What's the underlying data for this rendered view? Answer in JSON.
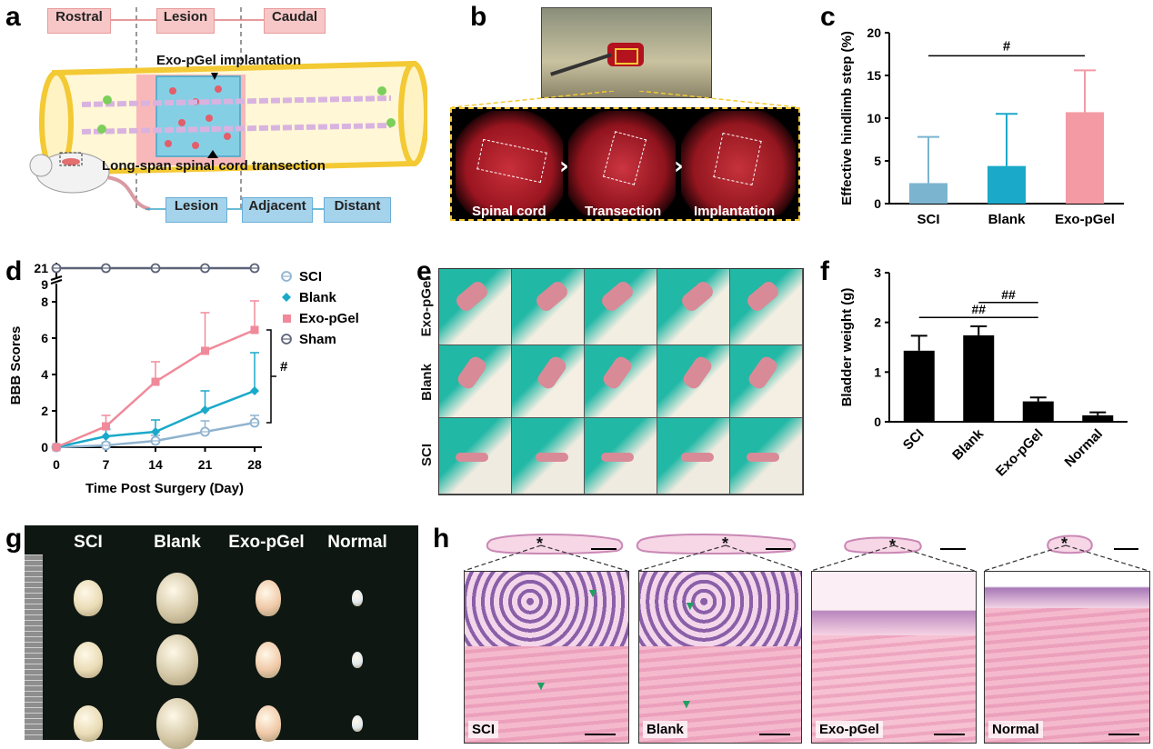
{
  "panels": {
    "a": {
      "label": "a",
      "top_boxes": [
        "Rostral",
        "Lesion",
        "Caudal"
      ],
      "implant_text": "Exo-pGel implantation",
      "transection_text": "Long-span spinal cord transection",
      "bottom_boxes": [
        "Lesion",
        "Adjacent",
        "Distant"
      ]
    },
    "b": {
      "label": "b",
      "captions": [
        "Spinal cord",
        "Transection",
        "Implantation"
      ]
    },
    "c": {
      "label": "c"
    },
    "d": {
      "label": "d"
    },
    "e": {
      "label": "e",
      "row_labels": [
        "Exo-pGel",
        "Blank",
        "SCI"
      ]
    },
    "f": {
      "label": "f"
    },
    "g": {
      "label": "g",
      "group_labels": [
        "SCI",
        "Blank",
        "Exo-pGel",
        "Normal"
      ]
    },
    "h": {
      "label": "h",
      "tile_labels": [
        "SCI",
        "Blank",
        "Exo-pGel",
        "Normal"
      ],
      "star": "*"
    }
  },
  "chart_data": [
    {
      "id": "c",
      "type": "bar",
      "categories": [
        "SCI",
        "Blank",
        "Exo-pGel"
      ],
      "values": [
        2.4,
        4.4,
        10.7
      ],
      "errors": [
        5.4,
        6.1,
        4.9
      ],
      "colors": [
        "#7bb4cf",
        "#1aa9c9",
        "#f49aa4"
      ],
      "ylabel": "Effective hindlimb step (%)",
      "xlabel": "",
      "ylim": [
        0,
        20
      ],
      "yticks": [
        0,
        5,
        10,
        15,
        20
      ],
      "annotations": [
        {
          "text": "#",
          "from": "SCI",
          "to": "Exo-pGel"
        }
      ]
    },
    {
      "id": "d",
      "type": "line",
      "x": [
        0,
        7,
        14,
        21,
        28
      ],
      "xticks": [
        0,
        7,
        14,
        21,
        28
      ],
      "yticks": [
        0,
        2,
        4,
        6,
        8
      ],
      "break_ticks": [
        "9",
        "21"
      ],
      "xlabel": "Time Post Surgery (Day)",
      "ylabel": "BBB Scores",
      "ylim": [
        0,
        9
      ],
      "series": [
        {
          "name": "SCI",
          "values": [
            0,
            0.1,
            0.35,
            0.85,
            1.35
          ],
          "errors": [
            0,
            0.15,
            0.3,
            0.6,
            0.4
          ],
          "color": "#8fb3cf",
          "marker": "circle"
        },
        {
          "name": "Blank",
          "values": [
            0,
            0.6,
            0.85,
            2.05,
            3.1
          ],
          "errors": [
            0,
            0.4,
            0.65,
            1.05,
            2.1
          ],
          "color": "#1aa9c9",
          "marker": "diamond"
        },
        {
          "name": "Exo-pGel",
          "values": [
            0,
            1.15,
            3.6,
            5.3,
            6.45
          ],
          "errors": [
            0,
            0.6,
            1.1,
            2.1,
            1.6
          ],
          "color": "#f08a9a",
          "marker": "square"
        },
        {
          "name": "Sham",
          "values": [
            21,
            21,
            21,
            21,
            21
          ],
          "errors": [
            0,
            0,
            0,
            0,
            0
          ],
          "color": "#5c6378",
          "marker": "circle"
        }
      ],
      "annotations": [
        {
          "text": "#"
        }
      ]
    },
    {
      "id": "f",
      "type": "bar",
      "categories": [
        "SCI",
        "Blank",
        "Exo-pGel",
        "Normal"
      ],
      "values": [
        1.43,
        1.74,
        0.41,
        0.13
      ],
      "errors": [
        0.3,
        0.18,
        0.08,
        0.06
      ],
      "colors": [
        "#000000",
        "#000000",
        "#000000",
        "#000000"
      ],
      "ylabel": "Bladder weight (g)",
      "xlabel": "",
      "ylim": [
        0,
        3
      ],
      "yticks": [
        0,
        1,
        2,
        3
      ],
      "annotations": [
        {
          "text": "##",
          "from": "Blank",
          "to": "Exo-pGel"
        },
        {
          "text": "##",
          "from": "SCI",
          "to": "Exo-pGel"
        }
      ]
    }
  ]
}
